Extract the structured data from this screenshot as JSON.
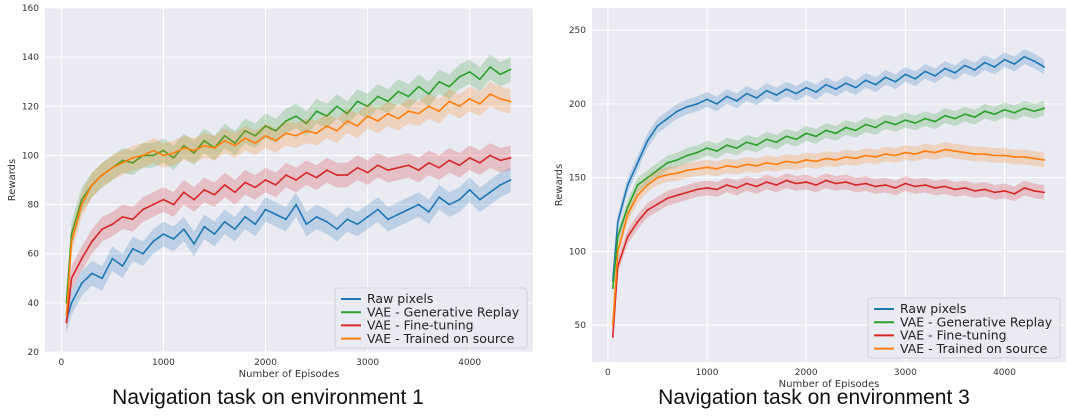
{
  "colors": {
    "plot_background": "#eaeaf2",
    "grid": "#ffffff",
    "raw_pixels": "#1f77b4",
    "generative_replay": "#2ca02c",
    "fine_tuning": "#d62728",
    "trained_on_source": "#ff7f0e"
  },
  "chart_data": [
    {
      "type": "line",
      "caption": "Navigation task on environment 1",
      "xlabel": "Number of Episodes",
      "ylabel": "Rewards",
      "xlim": [
        -160,
        4620
      ],
      "ylim": [
        20,
        160
      ],
      "xticks": [
        0,
        1000,
        2000,
        3000,
        4000
      ],
      "yticks": [
        20,
        40,
        60,
        80,
        100,
        120,
        140,
        160
      ],
      "grid": true,
      "legend_position": "lower-right",
      "legend": [
        "Raw pixels",
        "VAE - Generative Replay",
        "VAE - Fine-tuning",
        "VAE - Trained on source"
      ],
      "series": [
        {
          "name": "Raw pixels",
          "color": "#1f77b4",
          "x": [
            50,
            100,
            200,
            300,
            400,
            500,
            600,
            700,
            800,
            900,
            1000,
            1100,
            1200,
            1300,
            1400,
            1500,
            1600,
            1700,
            1800,
            1900,
            2000,
            2100,
            2200,
            2300,
            2400,
            2500,
            2600,
            2700,
            2800,
            2900,
            3000,
            3100,
            3200,
            3300,
            3400,
            3500,
            3600,
            3700,
            3800,
            3900,
            4000,
            4100,
            4200,
            4300,
            4400
          ],
          "y": [
            33,
            40,
            48,
            52,
            50,
            58,
            55,
            62,
            60,
            65,
            68,
            66,
            70,
            64,
            71,
            68,
            73,
            70,
            75,
            72,
            78,
            76,
            74,
            80,
            72,
            75,
            73,
            70,
            74,
            72,
            75,
            78,
            74,
            76,
            78,
            80,
            77,
            83,
            80,
            82,
            86,
            82,
            85,
            88,
            90
          ]
        },
        {
          "name": "VAE - Generative Replay",
          "color": "#2ca02c",
          "x": [
            50,
            100,
            200,
            300,
            400,
            500,
            600,
            700,
            800,
            900,
            1000,
            1100,
            1200,
            1300,
            1400,
            1500,
            1600,
            1700,
            1800,
            1900,
            2000,
            2100,
            2200,
            2300,
            2400,
            2500,
            2600,
            2700,
            2800,
            2900,
            3000,
            3100,
            3200,
            3300,
            3400,
            3500,
            3600,
            3700,
            3800,
            3900,
            4000,
            4100,
            4200,
            4300,
            4400
          ],
          "y": [
            40,
            68,
            82,
            88,
            92,
            95,
            98,
            97,
            100,
            100,
            102,
            99,
            104,
            101,
            106,
            103,
            108,
            105,
            110,
            108,
            112,
            110,
            114,
            116,
            113,
            118,
            116,
            120,
            117,
            122,
            120,
            124,
            122,
            126,
            124,
            128,
            125,
            130,
            128,
            132,
            134,
            131,
            136,
            133,
            135
          ]
        },
        {
          "name": "VAE - Fine-tuning",
          "color": "#d62728",
          "x": [
            50,
            100,
            200,
            300,
            400,
            500,
            600,
            700,
            800,
            900,
            1000,
            1100,
            1200,
            1300,
            1400,
            1500,
            1600,
            1700,
            1800,
            1900,
            2000,
            2100,
            2200,
            2300,
            2400,
            2500,
            2600,
            2700,
            2800,
            2900,
            3000,
            3100,
            3200,
            3300,
            3400,
            3500,
            3600,
            3700,
            3800,
            3900,
            4000,
            4100,
            4200,
            4300,
            4400
          ],
          "y": [
            32,
            50,
            58,
            65,
            70,
            72,
            75,
            74,
            78,
            80,
            82,
            80,
            85,
            82,
            86,
            84,
            88,
            85,
            89,
            87,
            90,
            88,
            92,
            90,
            93,
            91,
            94,
            92,
            92,
            95,
            93,
            96,
            94,
            95,
            96,
            94,
            97,
            95,
            98,
            96,
            99,
            97,
            100,
            98,
            99
          ]
        },
        {
          "name": "VAE - Trained on source",
          "color": "#ff7f0e",
          "x": [
            50,
            100,
            200,
            300,
            400,
            500,
            600,
            700,
            800,
            900,
            1000,
            1100,
            1200,
            1300,
            1400,
            1500,
            1600,
            1700,
            1800,
            1900,
            2000,
            2100,
            2200,
            2300,
            2400,
            2500,
            2600,
            2700,
            2800,
            2900,
            3000,
            3100,
            3200,
            3300,
            3400,
            3500,
            3600,
            3700,
            3800,
            3900,
            4000,
            4100,
            4200,
            4300,
            4400
          ],
          "y": [
            35,
            65,
            80,
            88,
            92,
            95,
            97,
            99,
            100,
            102,
            100,
            101,
            103,
            102,
            104,
            103,
            106,
            104,
            107,
            105,
            108,
            106,
            109,
            108,
            110,
            109,
            112,
            110,
            114,
            112,
            116,
            114,
            117,
            115,
            118,
            117,
            120,
            118,
            122,
            120,
            123,
            121,
            125,
            123,
            122
          ]
        }
      ]
    },
    {
      "type": "line",
      "caption": "Navigation task on environment 3",
      "xlabel": "Number of Episodes",
      "ylabel": "Rewards",
      "xlim": [
        -160,
        4620
      ],
      "ylim": [
        25,
        265
      ],
      "xticks": [
        0,
        1000,
        2000,
        3000,
        4000
      ],
      "yticks": [
        50,
        100,
        150,
        200,
        250
      ],
      "grid": true,
      "legend_position": "lower-right",
      "legend": [
        "Raw pixels",
        "VAE - Generative Replay",
        "VAE - Fine-tuning",
        "VAE - Trained on source"
      ],
      "series": [
        {
          "name": "Raw pixels",
          "color": "#1f77b4",
          "x": [
            50,
            100,
            200,
            300,
            400,
            500,
            600,
            700,
            800,
            900,
            1000,
            1100,
            1200,
            1300,
            1400,
            1500,
            1600,
            1700,
            1800,
            1900,
            2000,
            2100,
            2200,
            2300,
            2400,
            2500,
            2600,
            2700,
            2800,
            2900,
            3000,
            3100,
            3200,
            3300,
            3400,
            3500,
            3600,
            3700,
            3800,
            3900,
            4000,
            4100,
            4200,
            4300,
            4400
          ],
          "y": [
            80,
            120,
            145,
            160,
            175,
            185,
            190,
            195,
            198,
            200,
            203,
            200,
            205,
            202,
            207,
            204,
            209,
            206,
            210,
            207,
            211,
            208,
            213,
            210,
            214,
            211,
            216,
            213,
            218,
            215,
            220,
            217,
            222,
            219,
            224,
            221,
            226,
            223,
            228,
            225,
            230,
            227,
            232,
            229,
            225
          ]
        },
        {
          "name": "VAE - Generative Replay",
          "color": "#2ca02c",
          "x": [
            50,
            100,
            200,
            300,
            400,
            500,
            600,
            700,
            800,
            900,
            1000,
            1100,
            1200,
            1300,
            1400,
            1500,
            1600,
            1700,
            1800,
            1900,
            2000,
            2100,
            2200,
            2300,
            2400,
            2500,
            2600,
            2700,
            2800,
            2900,
            3000,
            3100,
            3200,
            3300,
            3400,
            3500,
            3600,
            3700,
            3800,
            3900,
            4000,
            4100,
            4200,
            4300,
            4400
          ],
          "y": [
            75,
            110,
            130,
            145,
            150,
            155,
            160,
            162,
            165,
            167,
            170,
            168,
            172,
            170,
            174,
            172,
            176,
            174,
            178,
            176,
            180,
            178,
            182,
            180,
            184,
            182,
            186,
            184,
            188,
            186,
            189,
            187,
            190,
            188,
            192,
            190,
            193,
            191,
            195,
            193,
            196,
            194,
            197,
            195,
            197
          ]
        },
        {
          "name": "VAE - Fine-tuning",
          "color": "#d62728",
          "x": [
            50,
            100,
            200,
            300,
            400,
            500,
            600,
            700,
            800,
            900,
            1000,
            1100,
            1200,
            1300,
            1400,
            1500,
            1600,
            1700,
            1800,
            1900,
            2000,
            2100,
            2200,
            2300,
            2400,
            2500,
            2600,
            2700,
            2800,
            2900,
            3000,
            3100,
            3200,
            3300,
            3400,
            3500,
            3600,
            3700,
            3800,
            3900,
            4000,
            4100,
            4200,
            4300,
            4400
          ],
          "y": [
            42,
            90,
            110,
            120,
            128,
            132,
            136,
            138,
            140,
            142,
            143,
            142,
            145,
            143,
            146,
            144,
            147,
            145,
            148,
            146,
            147,
            145,
            148,
            146,
            147,
            145,
            146,
            144,
            145,
            143,
            146,
            144,
            145,
            143,
            144,
            142,
            143,
            141,
            142,
            140,
            141,
            139,
            143,
            141,
            140
          ]
        },
        {
          "name": "VAE - Trained on source",
          "color": "#ff7f0e",
          "x": [
            50,
            100,
            200,
            300,
            400,
            500,
            600,
            700,
            800,
            900,
            1000,
            1100,
            1200,
            1300,
            1400,
            1500,
            1600,
            1700,
            1800,
            1900,
            2000,
            2100,
            2200,
            2300,
            2400,
            2500,
            2600,
            2700,
            2800,
            2900,
            3000,
            3100,
            3200,
            3300,
            3400,
            3500,
            3600,
            3700,
            3800,
            3900,
            4000,
            4100,
            4200,
            4300,
            4400
          ],
          "y": [
            50,
            100,
            125,
            138,
            145,
            150,
            152,
            153,
            155,
            156,
            157,
            156,
            158,
            157,
            159,
            158,
            160,
            159,
            161,
            160,
            162,
            161,
            163,
            162,
            164,
            163,
            165,
            164,
            166,
            165,
            167,
            166,
            168,
            167,
            169,
            168,
            167,
            166,
            166,
            165,
            165,
            164,
            164,
            163,
            162
          ]
        }
      ]
    }
  ]
}
